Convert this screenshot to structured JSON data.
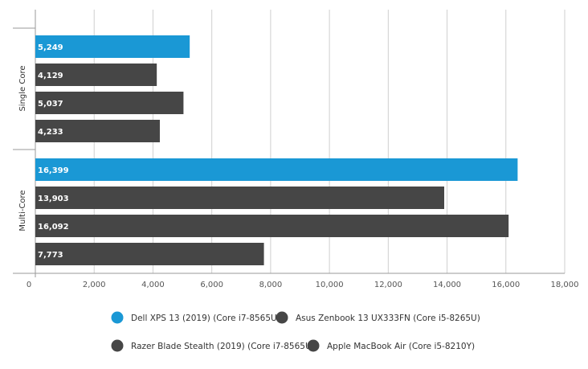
{
  "chart_data": {
    "type": "bar",
    "orientation": "horizontal",
    "groups": [
      "Single Core",
      "Multi-Core"
    ],
    "series": [
      {
        "name": "Dell XPS 13 (2019) (Core i7-8565U)",
        "color": "#1a98d5",
        "values": [
          5249,
          16399
        ],
        "labels": [
          "5,249",
          "16,399"
        ]
      },
      {
        "name": "Asus Zenbook 13 UX333FN (Core i5-8265U)",
        "color": "#464646",
        "values": [
          4129,
          13903
        ],
        "labels": [
          "4,129",
          "13,903"
        ]
      },
      {
        "name": "Razer Blade Stealth (2019) (Core i7-8565U)",
        "color": "#464646",
        "values": [
          5037,
          16092
        ],
        "labels": [
          "5,037",
          "16,092"
        ]
      },
      {
        "name": "Apple MacBook Air (Core i5-8210Y)",
        "color": "#464646",
        "values": [
          4233,
          7773
        ],
        "labels": [
          "4,233",
          "7,773"
        ]
      }
    ],
    "xlim": [
      0,
      18000
    ],
    "x_ticks": [
      0,
      2000,
      4000,
      6000,
      8000,
      10000,
      12000,
      14000,
      16000,
      18000
    ],
    "x_tick_labels": [
      "0",
      "2,000",
      "4,000",
      "6,000",
      "8,000",
      "10,000",
      "12,000",
      "14,000",
      "16,000",
      "18,000"
    ],
    "title": "",
    "xlabel": "",
    "ylabel": "",
    "grid": true,
    "legend_position": "bottom"
  }
}
